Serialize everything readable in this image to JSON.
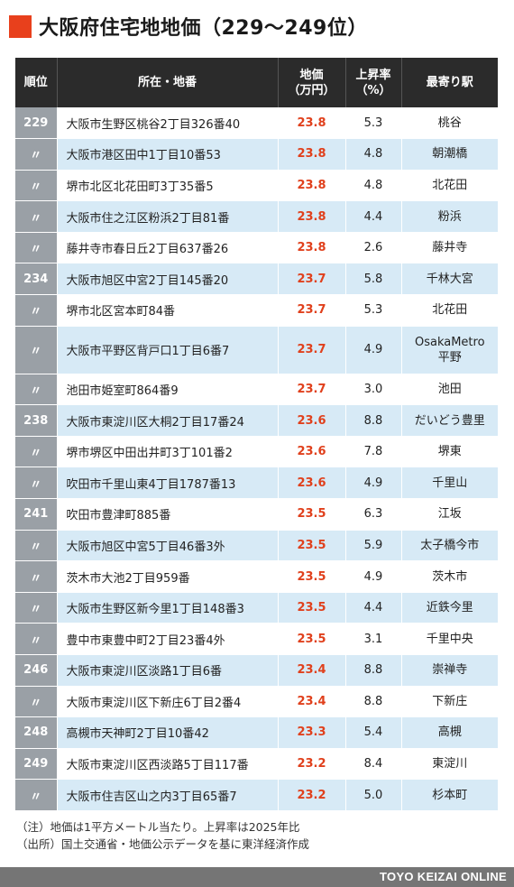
{
  "title": "大阪府住宅地地価（229〜249位）",
  "headers": {
    "rank": "順位",
    "address": "所在・地番",
    "price_l1": "地価",
    "price_l2": "（万円）",
    "rate_l1": "上昇率",
    "rate_l2": "（%）",
    "station": "最寄り駅"
  },
  "rows": [
    {
      "rank": "229",
      "address": "大阪市生野区桃谷2丁目326番40",
      "price": "23.8",
      "rate": "5.3",
      "station_l1": "桃谷",
      "station_l2": ""
    },
    {
      "rank": "〃",
      "address": "大阪市港区田中1丁目10番53",
      "price": "23.8",
      "rate": "4.8",
      "station_l1": "朝潮橋",
      "station_l2": ""
    },
    {
      "rank": "〃",
      "address": "堺市北区北花田町3丁35番5",
      "price": "23.8",
      "rate": "4.8",
      "station_l1": "北花田",
      "station_l2": ""
    },
    {
      "rank": "〃",
      "address": "大阪市住之江区粉浜2丁目81番",
      "price": "23.8",
      "rate": "4.4",
      "station_l1": "粉浜",
      "station_l2": ""
    },
    {
      "rank": "〃",
      "address": "藤井寺市春日丘2丁目637番26",
      "price": "23.8",
      "rate": "2.6",
      "station_l1": "藤井寺",
      "station_l2": ""
    },
    {
      "rank": "234",
      "address": "大阪市旭区中宮2丁目145番20",
      "price": "23.7",
      "rate": "5.8",
      "station_l1": "千林大宮",
      "station_l2": ""
    },
    {
      "rank": "〃",
      "address": "堺市北区宮本町84番",
      "price": "23.7",
      "rate": "5.3",
      "station_l1": "北花田",
      "station_l2": ""
    },
    {
      "rank": "〃",
      "address": "大阪市平野区背戸口1丁目6番7",
      "price": "23.7",
      "rate": "4.9",
      "station_l1": "OsakaMetro",
      "station_l2": "平野"
    },
    {
      "rank": "〃",
      "address": "池田市姫室町864番9",
      "price": "23.7",
      "rate": "3.0",
      "station_l1": "池田",
      "station_l2": ""
    },
    {
      "rank": "238",
      "address": "大阪市東淀川区大桐2丁目17番24",
      "price": "23.6",
      "rate": "8.8",
      "station_l1": "だいどう豊里",
      "station_l2": ""
    },
    {
      "rank": "〃",
      "address": "堺市堺区中田出井町3丁101番2",
      "price": "23.6",
      "rate": "7.8",
      "station_l1": "堺東",
      "station_l2": ""
    },
    {
      "rank": "〃",
      "address": "吹田市千里山東4丁目1787番13",
      "price": "23.6",
      "rate": "4.9",
      "station_l1": "千里山",
      "station_l2": ""
    },
    {
      "rank": "241",
      "address": "吹田市豊津町885番",
      "price": "23.5",
      "rate": "6.3",
      "station_l1": "江坂",
      "station_l2": ""
    },
    {
      "rank": "〃",
      "address": "大阪市旭区中宮5丁目46番3外",
      "price": "23.5",
      "rate": "5.9",
      "station_l1": "太子橋今市",
      "station_l2": ""
    },
    {
      "rank": "〃",
      "address": "茨木市大池2丁目959番",
      "price": "23.5",
      "rate": "4.9",
      "station_l1": "茨木市",
      "station_l2": ""
    },
    {
      "rank": "〃",
      "address": "大阪市生野区新今里1丁目148番3",
      "price": "23.5",
      "rate": "4.4",
      "station_l1": "近鉄今里",
      "station_l2": ""
    },
    {
      "rank": "〃",
      "address": "豊中市東豊中町2丁目23番4外",
      "price": "23.5",
      "rate": "3.1",
      "station_l1": "千里中央",
      "station_l2": ""
    },
    {
      "rank": "246",
      "address": "大阪市東淀川区淡路1丁目6番",
      "price": "23.4",
      "rate": "8.8",
      "station_l1": "崇禅寺",
      "station_l2": ""
    },
    {
      "rank": "〃",
      "address": "大阪市東淀川区下新庄6丁目2番4",
      "price": "23.4",
      "rate": "8.8",
      "station_l1": "下新庄",
      "station_l2": ""
    },
    {
      "rank": "248",
      "address": "高槻市天神町2丁目10番42",
      "price": "23.3",
      "rate": "5.4",
      "station_l1": "高槻",
      "station_l2": ""
    },
    {
      "rank": "249",
      "address": "大阪市東淀川区西淡路5丁目117番",
      "price": "23.2",
      "rate": "8.4",
      "station_l1": "東淀川",
      "station_l2": ""
    },
    {
      "rank": "〃",
      "address": "大阪市住吉区山之内3丁目65番7",
      "price": "23.2",
      "rate": "5.0",
      "station_l1": "杉本町",
      "station_l2": ""
    }
  ],
  "notes": {
    "note1": "（注）地価は1平方メートル当たり。上昇率は2025年比",
    "note2": "（出所）国土交通省・地価公示データを基に東洋経済作成"
  },
  "footer": "TOYO KEIZAI ONLINE",
  "colors": {
    "accent": "#e8401c",
    "header_bg": "#2b2b2b",
    "rank_bg": "#9aa0a6",
    "row_alt_bg": "#d7eaf6",
    "price_text": "#e0401c",
    "footer_bg": "#757575"
  }
}
